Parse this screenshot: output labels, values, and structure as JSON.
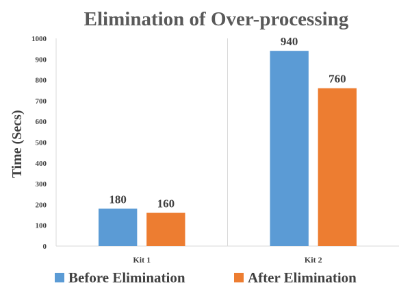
{
  "chart_data": {
    "type": "bar",
    "title": "Elimination of Over-processing",
    "ylabel": "Time  (Secs)",
    "xlabel": "",
    "categories": [
      "Kit 1",
      "Kit 2"
    ],
    "ylim": [
      0,
      1000
    ],
    "yticks": [
      "0",
      "100",
      "200",
      "300",
      "400",
      "500",
      "600",
      "700",
      "800",
      "900",
      "1000"
    ],
    "series": [
      {
        "name": "Before Elimination",
        "values": [
          180,
          940
        ],
        "color": "#5b9bd5"
      },
      {
        "name": "After Elimination",
        "values": [
          160,
          760
        ],
        "color": "#ed7d31"
      }
    ],
    "data_labels": true,
    "legend_position": "bottom",
    "category_separators": true
  }
}
